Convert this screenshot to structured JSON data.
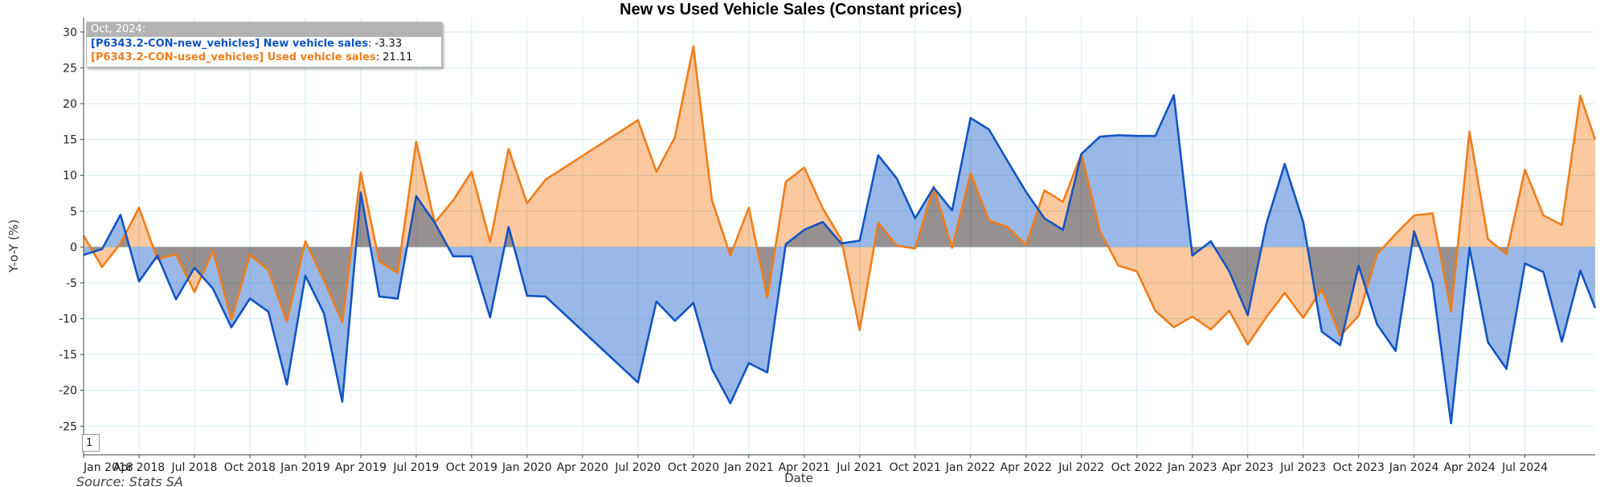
{
  "colors": {
    "new": "#1254c4",
    "used": "#f07d1a",
    "new_fill": "#94b4e6",
    "used_fill": "#fcc59a",
    "overlap_fill": "#9c9aac",
    "grid": "#d3eef2"
  },
  "tooltip": {
    "header": "Oct, 2024:",
    "new_key": "[P6343.2-CON-new_vehicles] New vehicle sales",
    "new_value": ": -3.33",
    "used_key": "[P6343.2-CON-used_vehicles] Used vehicle sales",
    "used_value": ": 21.11"
  },
  "page_indicator": "1",
  "source": "Source: Stats SA",
  "chart_data": {
    "type": "area",
    "title": "New vs Used Vehicle Sales (Constant prices)",
    "xlabel": "Date",
    "ylabel": "Y-o-Y (%)",
    "ylim": [
      -29,
      32
    ],
    "yticks": [
      30,
      25,
      20,
      15,
      10,
      5,
      0,
      -5,
      -10,
      -15,
      -20,
      -25
    ],
    "xlim_months": [
      0,
      81.8
    ],
    "xticks": [
      {
        "label": "Jan 2018",
        "m": 0
      },
      {
        "label": "Apr 2018",
        "m": 3
      },
      {
        "label": "Jul 2018",
        "m": 6
      },
      {
        "label": "Oct 2018",
        "m": 9
      },
      {
        "label": "Jan 2019",
        "m": 12
      },
      {
        "label": "Apr 2019",
        "m": 15
      },
      {
        "label": "Jul 2019",
        "m": 18
      },
      {
        "label": "Oct 2019",
        "m": 21
      },
      {
        "label": "Jan 2020",
        "m": 24
      },
      {
        "label": "Apr 2020",
        "m": 27
      },
      {
        "label": "Jul 2020",
        "m": 30
      },
      {
        "label": "Oct 2020",
        "m": 33
      },
      {
        "label": "Jan 2021",
        "m": 36
      },
      {
        "label": "Apr 2021",
        "m": 39
      },
      {
        "label": "Jul 2021",
        "m": 42
      },
      {
        "label": "Oct 2021",
        "m": 45
      },
      {
        "label": "Jan 2022",
        "m": 48
      },
      {
        "label": "Apr 2022",
        "m": 51
      },
      {
        "label": "Jul 2022",
        "m": 54
      },
      {
        "label": "Oct 2022",
        "m": 57
      },
      {
        "label": "Jan 2023",
        "m": 60
      },
      {
        "label": "Apr 2023",
        "m": 63
      },
      {
        "label": "Jul 2023",
        "m": 66
      },
      {
        "label": "Oct 2023",
        "m": 69
      },
      {
        "label": "Jan 2024",
        "m": 72
      },
      {
        "label": "Apr 2024",
        "m": 75
      },
      {
        "label": "Jul 2024",
        "m": 78
      }
    ],
    "series": [
      {
        "name": "[P6343.2-CON-new_vehicles] New vehicle sales",
        "points": [
          [
            0,
            -1.1
          ],
          [
            1,
            -0.3
          ],
          [
            2,
            4.5
          ],
          [
            3,
            -4.8
          ],
          [
            4,
            -1.2
          ],
          [
            5,
            -7.3
          ],
          [
            6,
            -2.9
          ],
          [
            7,
            -5.8
          ],
          [
            8,
            -11.2
          ],
          [
            9,
            -7.2
          ],
          [
            10,
            -9.0
          ],
          [
            11,
            -19.2
          ],
          [
            12,
            -4.0
          ],
          [
            13,
            -9.2
          ],
          [
            14,
            -21.6
          ],
          [
            15,
            7.6
          ],
          [
            16,
            -6.9
          ],
          [
            17,
            -7.2
          ],
          [
            18,
            7.1
          ],
          [
            19,
            3.4
          ],
          [
            20,
            -1.3
          ],
          [
            21,
            -1.3
          ],
          [
            22,
            -9.8
          ],
          [
            23,
            2.8
          ],
          [
            24,
            -6.8
          ],
          [
            25,
            -6.9
          ],
          [
            30,
            -18.9
          ],
          [
            31,
            -7.6
          ],
          [
            32,
            -10.3
          ],
          [
            33,
            -7.8
          ],
          [
            34,
            -17.0
          ],
          [
            35,
            -21.8
          ],
          [
            36,
            -16.2
          ],
          [
            37,
            -17.5
          ],
          [
            38,
            0.4
          ],
          [
            39,
            2.4
          ],
          [
            40,
            3.5
          ],
          [
            41,
            0.5
          ],
          [
            42,
            0.9
          ],
          [
            43,
            12.8
          ],
          [
            44,
            9.6
          ],
          [
            45,
            4.0
          ],
          [
            46,
            8.3
          ],
          [
            47,
            5.1
          ],
          [
            48,
            18.0
          ],
          [
            49,
            16.4
          ],
          [
            50,
            12.0
          ],
          [
            51,
            7.7
          ],
          [
            52,
            4.0
          ],
          [
            53,
            2.4
          ],
          [
            54,
            13.0
          ],
          [
            55,
            15.4
          ],
          [
            56,
            15.6
          ],
          [
            57,
            15.5
          ],
          [
            58,
            15.5
          ],
          [
            59,
            21.2
          ],
          [
            60,
            -1.2
          ],
          [
            61,
            0.8
          ],
          [
            62,
            -3.4
          ],
          [
            63,
            -9.5
          ],
          [
            64,
            3.2
          ],
          [
            65,
            11.6
          ],
          [
            66,
            3.5
          ],
          [
            67,
            -11.8
          ],
          [
            68,
            -13.7
          ],
          [
            69,
            -2.6
          ],
          [
            70,
            -10.8
          ],
          [
            71,
            -14.5
          ],
          [
            72,
            2.2
          ],
          [
            73,
            -5.0
          ],
          [
            74,
            -24.6
          ],
          [
            75,
            -0.1
          ],
          [
            76,
            -13.3
          ],
          [
            77,
            -17.0
          ],
          [
            78,
            -2.3
          ],
          [
            79,
            -3.5
          ],
          [
            80,
            -13.2
          ],
          [
            81,
            -3.3
          ],
          [
            81.8,
            -8.5
          ]
        ]
      },
      {
        "name": "[P6343.2-CON-used_vehicles] Used vehicle sales",
        "points": [
          [
            0,
            1.6
          ],
          [
            1,
            -2.8
          ],
          [
            2,
            0.5
          ],
          [
            3,
            5.5
          ],
          [
            4,
            -1.7
          ],
          [
            5,
            -1.0
          ],
          [
            6,
            -6.3
          ],
          [
            7,
            -0.5
          ],
          [
            8,
            -10.1
          ],
          [
            9,
            -1.1
          ],
          [
            10,
            -3.2
          ],
          [
            11,
            -10.4
          ],
          [
            12,
            0.8
          ],
          [
            13,
            -4.6
          ],
          [
            14,
            -10.5
          ],
          [
            15,
            10.4
          ],
          [
            16,
            -2.0
          ],
          [
            17,
            -3.6
          ],
          [
            18,
            14.7
          ],
          [
            19,
            3.4
          ],
          [
            20,
            6.5
          ],
          [
            21,
            10.5
          ],
          [
            22,
            0.7
          ],
          [
            23,
            13.7
          ],
          [
            24,
            6.1
          ],
          [
            25,
            9.4
          ],
          [
            30,
            17.7
          ],
          [
            31,
            10.5
          ],
          [
            32,
            15.3
          ],
          [
            33,
            28.0
          ],
          [
            34,
            6.6
          ],
          [
            35,
            -1.2
          ],
          [
            36,
            5.5
          ],
          [
            37,
            -7.1
          ],
          [
            38,
            9.1
          ],
          [
            39,
            11.1
          ],
          [
            40,
            5.4
          ],
          [
            41,
            1.1
          ],
          [
            42,
            -11.6
          ],
          [
            43,
            3.4
          ],
          [
            44,
            0.2
          ],
          [
            45,
            -0.2
          ],
          [
            46,
            8.4
          ],
          [
            47,
            -0.1
          ],
          [
            48,
            10.3
          ],
          [
            49,
            3.7
          ],
          [
            50,
            2.8
          ],
          [
            51,
            0.3
          ],
          [
            52,
            7.9
          ],
          [
            53,
            6.3
          ],
          [
            54,
            13.0
          ],
          [
            55,
            2.2
          ],
          [
            56,
            -2.6
          ],
          [
            57,
            -3.4
          ],
          [
            58,
            -8.9
          ],
          [
            59,
            -11.2
          ],
          [
            60,
            -9.7
          ],
          [
            61,
            -11.5
          ],
          [
            62,
            -8.9
          ],
          [
            63,
            -13.6
          ],
          [
            64,
            -9.8
          ],
          [
            65,
            -6.4
          ],
          [
            66,
            -9.9
          ],
          [
            67,
            -5.9
          ],
          [
            68,
            -12.4
          ],
          [
            69,
            -9.6
          ],
          [
            70,
            -1.0
          ],
          [
            71,
            1.8
          ],
          [
            72,
            4.4
          ],
          [
            73,
            4.7
          ],
          [
            74,
            -9.0
          ],
          [
            75,
            16.1
          ],
          [
            76,
            1.1
          ],
          [
            77,
            -1.0
          ],
          [
            78,
            10.8
          ],
          [
            79,
            4.4
          ],
          [
            80,
            3.1
          ],
          [
            81,
            21.1
          ],
          [
            81.8,
            15.0
          ]
        ]
      }
    ]
  }
}
